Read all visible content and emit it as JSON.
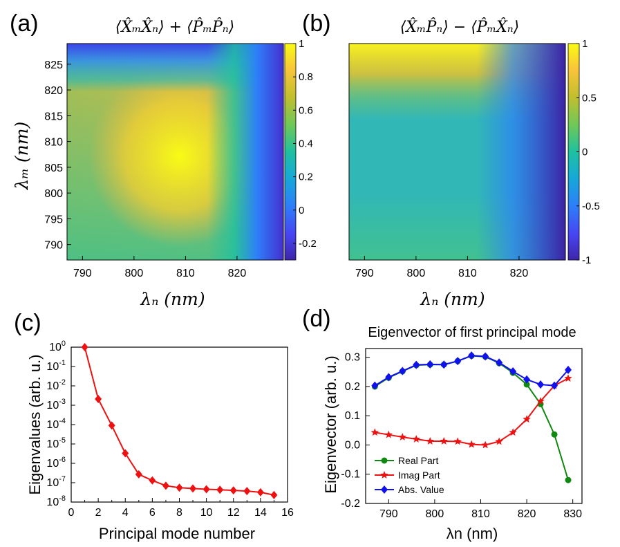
{
  "panels": {
    "a": {
      "letter": "(a)",
      "title": "⟨X̂ₘX̂ₙ⟩ + ⟨P̂ₘP̂ₙ⟩",
      "xlabel": "λₙ (nm)",
      "ylabel": "λₘ (nm)",
      "xticks": [
        "790",
        "800",
        "810",
        "820"
      ],
      "yticks": [
        "825",
        "820",
        "815",
        "810",
        "805",
        "800",
        "795",
        "790"
      ],
      "colorbar_ticks": [
        "1",
        "0.8",
        "0.6",
        "0.4",
        "0.2",
        "0",
        "-0.2"
      ]
    },
    "b": {
      "letter": "(b)",
      "title": "⟨X̂ₘP̂ₙ⟩ − ⟨P̂ₘX̂ₙ⟩",
      "xlabel": "λₙ (nm)",
      "xticks": [
        "790",
        "800",
        "810",
        "820"
      ],
      "colorbar_ticks": [
        "1",
        "0.5",
        "0",
        "-0.5",
        "-1"
      ]
    },
    "c": {
      "letter": "(c)",
      "xlabel": "Principal mode number",
      "ylabel": "Eigenvalues (arb. u.)",
      "xticks": [
        "0",
        "2",
        "4",
        "6",
        "8",
        "10",
        "12",
        "14",
        "16"
      ]
    },
    "d": {
      "letter": "(d)",
      "title": "Eigenvector of first principal mode",
      "xlabel": "λn (nm)",
      "ylabel": "Eigenvector (arb. u.)",
      "xticks": [
        "790",
        "800",
        "810",
        "820",
        "830"
      ],
      "yticks": [
        "0.3",
        "0.2",
        "0.1",
        "0.0",
        "-0.1",
        "-0.2"
      ]
    }
  },
  "chart_data": [
    {
      "type": "heatmap",
      "panel": "a",
      "title": "⟨X̂ₘX̂ₙ⟩ + ⟨P̂ₘP̂ₙ⟩",
      "xlabel": "λₙ (nm)",
      "ylabel": "λₘ (nm)",
      "xlim": [
        787,
        829
      ],
      "ylim": [
        787,
        829
      ],
      "colorbar_range": [
        -0.3,
        1
      ],
      "colormap": "parula",
      "description_values": {
        "peak_center": [
          809,
          809
        ],
        "peak_value": 1.0,
        "min_near": [
          827,
          808
        ],
        "min_value": -0.3
      }
    },
    {
      "type": "heatmap",
      "panel": "b",
      "title": "⟨X̂ₘP̂ₙ⟩ − ⟨P̂ₘX̂ₙ⟩",
      "xlabel": "λₙ (nm)",
      "xlim": [
        787,
        829
      ],
      "ylim": [
        787,
        829
      ],
      "colorbar_range": [
        -1,
        1
      ],
      "colormap": "parula",
      "description_values": {
        "max_near": [
          810,
          829
        ],
        "max_value": 1.0,
        "min_near": [
          828,
          808
        ],
        "min_value": -1.0
      }
    },
    {
      "type": "line",
      "panel": "c",
      "xlabel": "Principal mode number",
      "ylabel": "Eigenvalues (arb. u.)",
      "yscale": "log",
      "xlim": [
        0,
        16
      ],
      "ylim": [
        1e-08,
        1
      ],
      "yticks": [
        "10^0",
        "10^-1",
        "10^-2",
        "10^-3",
        "10^-4",
        "10^-5",
        "10^-6",
        "10^-7",
        "10^-8"
      ],
      "color": "#ee1111",
      "marker": "diamond",
      "x": [
        1,
        2,
        3,
        4,
        5,
        6,
        7,
        8,
        9,
        10,
        11,
        12,
        13,
        14,
        15
      ],
      "y": [
        1.0,
        0.0021,
        9e-05,
        3.3e-06,
        2.7e-07,
        1.3e-07,
        7e-08,
        5.5e-08,
        5e-08,
        4.6e-08,
        4.3e-08,
        4e-08,
        3.7e-08,
        3.2e-08,
        2.3e-08
      ]
    },
    {
      "type": "line",
      "panel": "d",
      "title": "Eigenvector of first principal mode",
      "xlabel": "λn (nm)",
      "ylabel": "Eigenvector (arb. u.)",
      "xlim": [
        785,
        832
      ],
      "ylim": [
        -0.2,
        0.33
      ],
      "legend": "bottom-left",
      "series": [
        {
          "name": "Real Part",
          "color": "#118811",
          "marker": "circle",
          "x": [
            787,
            790,
            793,
            796,
            799,
            802,
            805,
            808,
            811,
            814,
            817,
            820,
            823,
            826,
            829
          ],
          "y": [
            0.2,
            0.23,
            0.252,
            0.273,
            0.275,
            0.275,
            0.287,
            0.305,
            0.302,
            0.28,
            0.247,
            0.207,
            0.14,
            0.036,
            -0.12
          ]
        },
        {
          "name": "Imag Part",
          "color": "#ee1111",
          "marker": "star",
          "x": [
            787,
            790,
            793,
            796,
            799,
            802,
            805,
            808,
            811,
            814,
            817,
            820,
            823,
            826,
            829
          ],
          "y": [
            0.043,
            0.035,
            0.027,
            0.02,
            0.013,
            0.013,
            0.012,
            0.002,
            0.0,
            0.012,
            0.043,
            0.088,
            0.15,
            0.203,
            0.228
          ]
        },
        {
          "name": "Abs. Value",
          "color": "#1111ee",
          "marker": "diamond",
          "x": [
            787,
            790,
            793,
            796,
            799,
            802,
            805,
            808,
            811,
            814,
            817,
            820,
            823,
            826,
            829
          ],
          "y": [
            0.203,
            0.232,
            0.253,
            0.274,
            0.276,
            0.275,
            0.287,
            0.306,
            0.303,
            0.282,
            0.252,
            0.224,
            0.207,
            0.203,
            0.257
          ]
        }
      ]
    }
  ]
}
